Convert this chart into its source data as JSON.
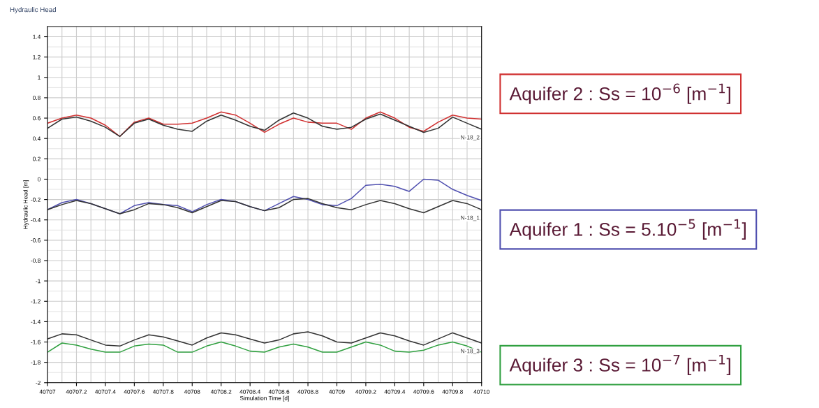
{
  "chart_data": {
    "type": "line",
    "title": "Hydraulic Head",
    "xlabel": "Simulation Time [d]",
    "ylabel": "Hydraulic Head [m]",
    "x": [
      40707,
      40707.1,
      40707.2,
      40707.3,
      40707.4,
      40707.5,
      40707.6,
      40707.7,
      40707.8,
      40707.9,
      40708,
      40708.1,
      40708.2,
      40708.3,
      40708.4,
      40708.5,
      40708.6,
      40708.7,
      40708.8,
      40708.9,
      40709,
      40709.1,
      40709.2,
      40709.3,
      40709.4,
      40709.5,
      40709.6,
      40709.7,
      40709.8,
      40709.9,
      40710
    ],
    "xlim": [
      40707,
      40710
    ],
    "xticks": [
      40707,
      40707.2,
      40707.4,
      40707.6,
      40707.8,
      40708,
      40708.2,
      40708.4,
      40708.6,
      40708.8,
      40709,
      40709.2,
      40709.4,
      40709.6,
      40709.8,
      40710
    ],
    "ylim": [
      -2,
      1.5
    ],
    "yticks": [
      -2,
      -1.8,
      -1.6,
      -1.4,
      -1.2,
      -1,
      -0.8,
      -0.6,
      -0.4,
      -0.2,
      0,
      0.2,
      0.4,
      0.6,
      0.8,
      1,
      1.2,
      1.4
    ],
    "grid": true,
    "legend": "right",
    "marker": "none",
    "line_style": "solid",
    "series": [
      {
        "name": "Aquifer 2 : Ss = 10$^{−6}$ [m$^{−1}$]",
        "color": "#d03030",
        "values": [
          0.55,
          0.6,
          0.63,
          0.6,
          0.53,
          0.42,
          0.56,
          0.6,
          0.54,
          0.54,
          0.55,
          0.6,
          0.66,
          0.63,
          0.55,
          0.46,
          0.54,
          0.6,
          0.56,
          0.55,
          0.55,
          0.49,
          0.6,
          0.66,
          0.6,
          0.51,
          0.47,
          0.56,
          0.63,
          0.6,
          0.59
        ]
      },
      {
        "color": "#333333",
        "values": [
          0.5,
          0.59,
          0.61,
          0.57,
          0.51,
          0.42,
          0.55,
          0.59,
          0.53,
          0.49,
          0.47,
          0.57,
          0.63,
          0.58,
          0.52,
          0.48,
          0.58,
          0.65,
          0.6,
          0.52,
          0.49,
          0.51,
          0.59,
          0.64,
          0.58,
          0.52,
          0.46,
          0.5,
          0.61,
          0.55,
          0.49
        ]
      },
      {
        "name": "Aquifer 1 : Ss = 5.10$^{−5}$ [m$^{−1}$]",
        "color": "#5050b0",
        "values": [
          -0.3,
          -0.23,
          -0.2,
          -0.24,
          -0.29,
          -0.34,
          -0.26,
          -0.23,
          -0.25,
          -0.26,
          -0.32,
          -0.25,
          -0.2,
          -0.22,
          -0.27,
          -0.31,
          -0.24,
          -0.17,
          -0.2,
          -0.25,
          -0.26,
          -0.19,
          -0.06,
          -0.05,
          -0.07,
          -0.12,
          0.0,
          -0.01,
          -0.1,
          -0.16,
          -0.21
        ]
      },
      {
        "color": "#333333",
        "values": [
          -0.3,
          -0.25,
          -0.21,
          -0.24,
          -0.29,
          -0.34,
          -0.3,
          -0.24,
          -0.25,
          -0.28,
          -0.33,
          -0.27,
          -0.21,
          -0.22,
          -0.27,
          -0.31,
          -0.28,
          -0.2,
          -0.19,
          -0.24,
          -0.28,
          -0.3,
          -0.25,
          -0.21,
          -0.24,
          -0.29,
          -0.33,
          -0.27,
          -0.21,
          -0.24,
          -0.3
        ]
      },
      {
        "color": "#333333",
        "values": [
          -1.57,
          -1.52,
          -1.53,
          -1.58,
          -1.63,
          -1.64,
          -1.58,
          -1.53,
          -1.55,
          -1.59,
          -1.63,
          -1.56,
          -1.51,
          -1.53,
          -1.57,
          -1.61,
          -1.58,
          -1.52,
          -1.5,
          -1.54,
          -1.6,
          -1.61,
          -1.56,
          -1.51,
          -1.54,
          -1.59,
          -1.63,
          -1.57,
          -1.51,
          -1.56,
          -1.61
        ]
      },
      {
        "name": "Aquifer 3 : Ss = 10$^{−7}$ [m$^{−1}$]",
        "color": "#30a040",
        "values": [
          -1.7,
          -1.61,
          -1.63,
          -1.67,
          -1.7,
          -1.7,
          -1.64,
          -1.62,
          -1.63,
          -1.7,
          -1.7,
          -1.64,
          -1.6,
          -1.64,
          -1.69,
          -1.7,
          -1.65,
          -1.62,
          -1.65,
          -1.7,
          -1.7,
          -1.65,
          -1.6,
          -1.63,
          -1.69,
          -1.7,
          -1.68,
          -1.63,
          -1.6,
          -1.64,
          -1.7
        ]
      }
    ],
    "annotations": [
      "N-18_2",
      "N-18_1",
      "N-18_3"
    ]
  }
}
